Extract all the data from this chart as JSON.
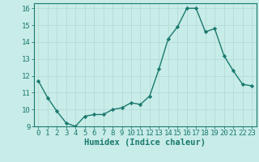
{
  "x": [
    0,
    1,
    2,
    3,
    4,
    5,
    6,
    7,
    8,
    9,
    10,
    11,
    12,
    13,
    14,
    15,
    16,
    17,
    18,
    19,
    20,
    21,
    22,
    23
  ],
  "y": [
    11.7,
    10.7,
    9.9,
    9.2,
    9.0,
    9.6,
    9.7,
    9.7,
    10.0,
    10.1,
    10.4,
    10.3,
    10.8,
    12.4,
    14.2,
    14.9,
    16.0,
    16.0,
    14.6,
    14.8,
    13.2,
    12.3,
    11.5,
    11.4
  ],
  "xlabel": "Humidex (Indice chaleur)",
  "ylim": [
    9,
    16.3
  ],
  "xlim": [
    -0.5,
    23.5
  ],
  "yticks": [
    9,
    10,
    11,
    12,
    13,
    14,
    15,
    16
  ],
  "xticks": [
    0,
    1,
    2,
    3,
    4,
    5,
    6,
    7,
    8,
    9,
    10,
    11,
    12,
    13,
    14,
    15,
    16,
    17,
    18,
    19,
    20,
    21,
    22,
    23
  ],
  "xtick_labels": [
    "0",
    "1",
    "2",
    "3",
    "4",
    "5",
    "6",
    "7",
    "8",
    "9",
    "10",
    "11",
    "12",
    "13",
    "14",
    "15",
    "16",
    "17",
    "18",
    "19",
    "20",
    "21",
    "22",
    "23"
  ],
  "line_color": "#1a7a6e",
  "marker": "D",
  "marker_size": 2.2,
  "bg_color": "#c8ece8",
  "grid_color": "#b8dcd8",
  "axes_color": "#1a7a6e",
  "tick_color": "#1a7a6e",
  "label_color": "#1a7a6e",
  "xlabel_fontsize": 7.5,
  "tick_fontsize": 6.5
}
